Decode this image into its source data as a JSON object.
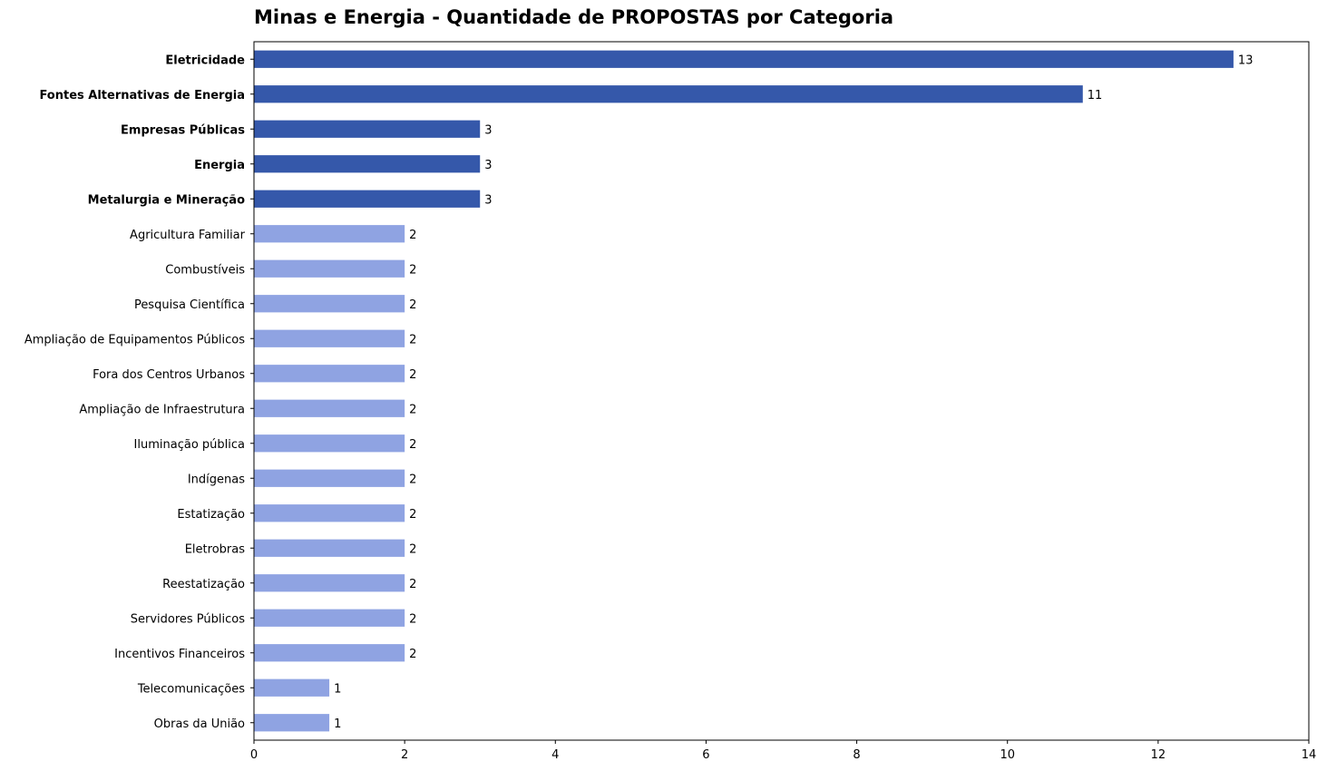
{
  "chart_data": {
    "type": "bar",
    "orientation": "horizontal",
    "title": "Minas e Energia - Quantidade de PROPOSTAS por Categoria",
    "xlabel": "",
    "ylabel": "",
    "xlim": [
      0,
      14
    ],
    "xticks": [
      "0",
      "2",
      "4",
      "6",
      "8",
      "10",
      "12",
      "14"
    ],
    "grid": false,
    "colors": {
      "highlight": "#3558aa",
      "normal": "#8fa3e2"
    },
    "categories": [
      "Eletricidade",
      "Fontes Alternativas de Energia",
      "Empresas Públicas",
      "Energia",
      "Metalurgia e Mineração",
      "Agricultura Familiar",
      "Combustíveis",
      "Pesquisa Científica",
      "Ampliação de Equipamentos Públicos",
      "Fora dos Centros Urbanos",
      "Ampliação de Infraestrutura",
      "Iluminação pública",
      "Indígenas",
      "Estatização",
      "Eletrobras",
      "Reestatização",
      "Servidores Públicos",
      "Incentivos Financeiros",
      "Telecomunicações",
      "Obras da União"
    ],
    "values": [
      13,
      11,
      3,
      3,
      3,
      2,
      2,
      2,
      2,
      2,
      2,
      2,
      2,
      2,
      2,
      2,
      2,
      2,
      1,
      1
    ],
    "highlighted": [
      true,
      true,
      true,
      true,
      true,
      false,
      false,
      false,
      false,
      false,
      false,
      false,
      false,
      false,
      false,
      false,
      false,
      false,
      false,
      false
    ]
  }
}
